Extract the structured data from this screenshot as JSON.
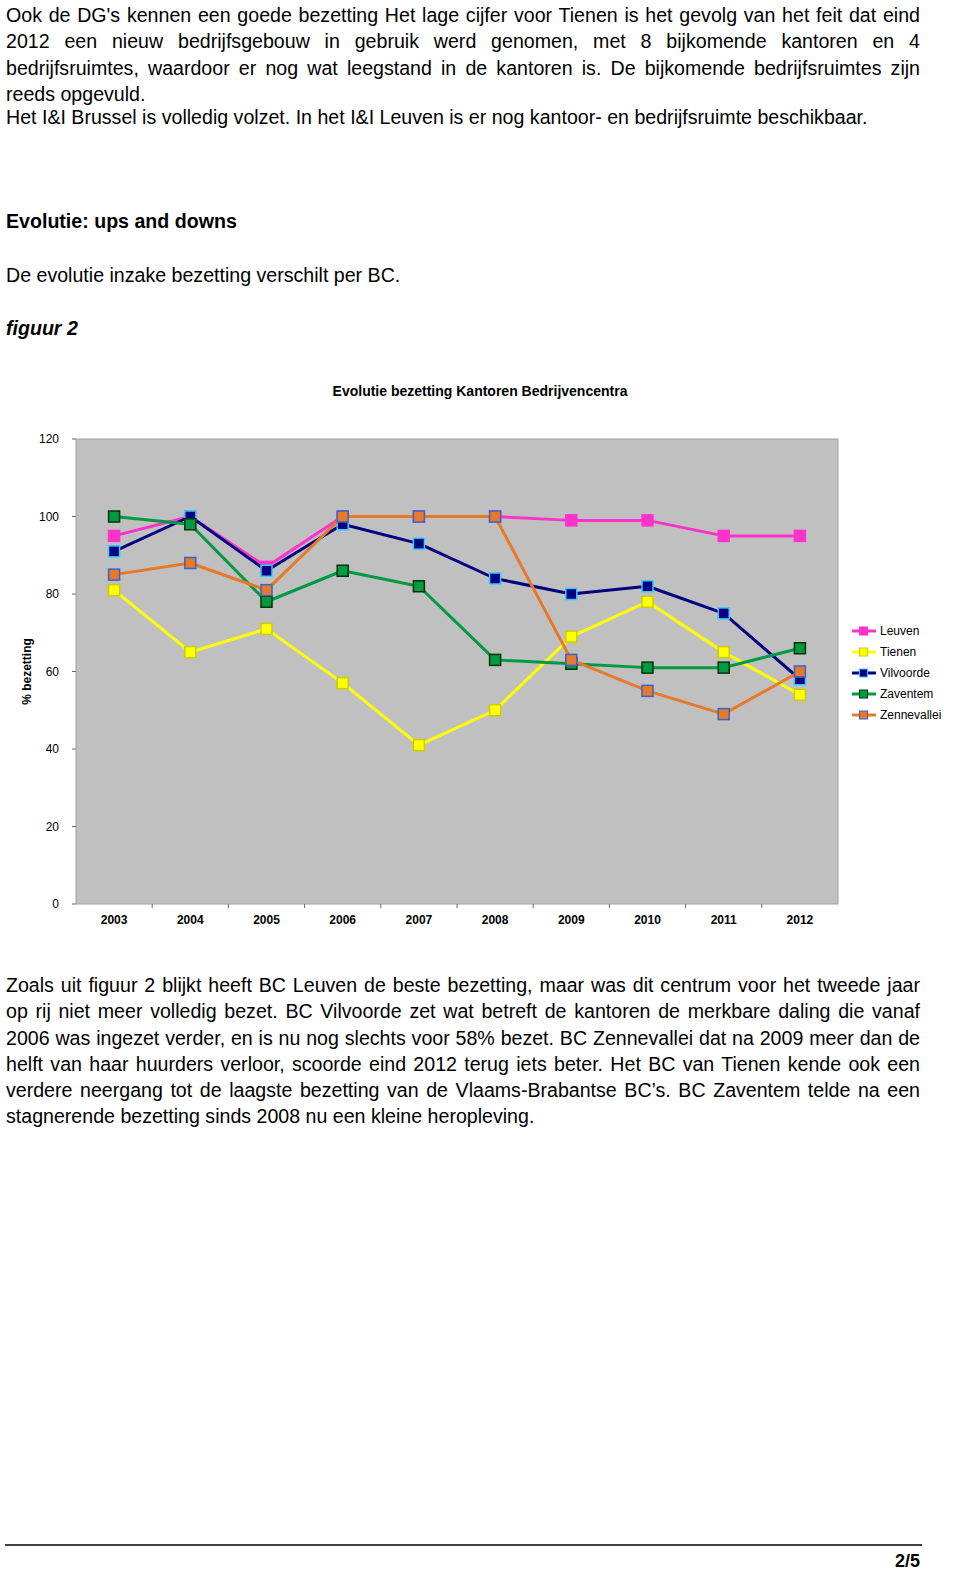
{
  "document": {
    "top_paragraphs": [
      "Ook de DG's kennen een goede bezetting Het lage cijfer voor Tienen is het gevolg van het feit dat eind 2012 een nieuw bedrijfsgebouw in gebruik werd genomen, met 8 bijkomende kantoren en 4 bedrijfsruimtes, waardoor er nog wat leegstand in de kantoren is. De bijkomende bedrijfsruimtes zijn reeds opgevuld.",
      "Het I&I Brussel is volledig volzet. In het I&I Leuven is er nog kantoor- en bedrijfsruimte beschikbaar."
    ],
    "heading": "Evolutie: ups and downs",
    "intro": "De evolutie inzake bezetting verschilt per BC.",
    "figure_label": "figuur 2",
    "analysis": "Zoals uit figuur 2 blijkt heeft BC Leuven de beste bezetting, maar was dit centrum voor het tweede jaar op rij niet meer volledig bezet. BC Vilvoorde zet wat betreft de kantoren de merkbare daling die vanaf 2006 was ingezet verder, en is nu nog slechts voor 58% bezet. BC Zennevallei dat na 2009 meer dan de helft van haar huurders verloor, scoorde eind 2012 terug iets beter. Het BC van Tienen kende ook een verdere neergang tot de laagste bezetting van de Vlaams-Brabantse BC’s. BC Zaventem telde na een stagnerende bezetting sinds 2008 nu een kleine heropleving.",
    "page_number": "2/5"
  },
  "chart_data": {
    "type": "line",
    "title": "Evolutie bezetting Kantoren Bedrijvencentra",
    "y_label": "% bezetting",
    "categories": [
      "2003",
      "2004",
      "2005",
      "2006",
      "2007",
      "2008",
      "2009",
      "2010",
      "2011",
      "2012"
    ],
    "series": [
      {
        "name": "Leuven",
        "color": "#ff33cc",
        "values": [
          95,
          100,
          87,
          100,
          100,
          100,
          99,
          99,
          95,
          95
        ]
      },
      {
        "name": "Tienen",
        "color": "#ffff00",
        "values": [
          81,
          65,
          71,
          57,
          41,
          50,
          69,
          78,
          65,
          54
        ]
      },
      {
        "name": "Vilvoorde",
        "color": "#000080",
        "values": [
          91,
          100,
          86,
          98,
          93,
          84,
          80,
          82,
          75,
          58
        ]
      },
      {
        "name": "Zaventem",
        "color": "#009944",
        "values": [
          100,
          98,
          78,
          86,
          82,
          63,
          62,
          61,
          61,
          66
        ]
      },
      {
        "name": "Zennevallei",
        "color": "#e8782a",
        "values": [
          85,
          88,
          81,
          100,
          100,
          100,
          63,
          55,
          49,
          60
        ]
      }
    ],
    "ylim": [
      0,
      120
    ],
    "yticks": [
      0,
      20,
      40,
      60,
      80,
      100,
      120
    ],
    "grid": false,
    "legend": "right",
    "marker": "square"
  }
}
